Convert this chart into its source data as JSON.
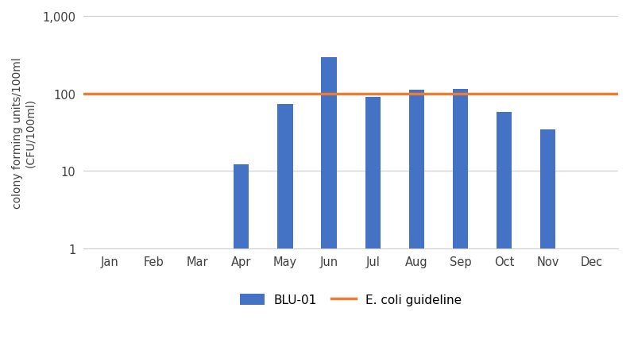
{
  "categories": [
    "Jan",
    "Feb",
    "Mar",
    "Apr",
    "May",
    "Jun",
    "Jul",
    "Aug",
    "Sep",
    "Oct",
    "Nov",
    "Dec"
  ],
  "values": [
    0,
    0,
    0,
    12,
    72,
    290,
    90,
    112,
    115,
    58,
    34,
    0
  ],
  "bar_color": "#4472C4",
  "guideline_value": 100,
  "guideline_color": "#ED7D31",
  "guideline_label": "E. coli guideline",
  "bar_label": "BLU-01",
  "ylabel": "colony forming units/100ml\n(CFU/100ml)",
  "ylim_min": 1,
  "ylim_max": 1000,
  "yticks": [
    1,
    10,
    100,
    1000
  ],
  "ytick_labels": [
    "1",
    "10",
    "100",
    "1,000"
  ],
  "background_color": "#ffffff",
  "bar_width": 0.35,
  "grid_color": "#cccccc",
  "guideline_linewidth": 2.5,
  "spine_color": "#cccccc"
}
